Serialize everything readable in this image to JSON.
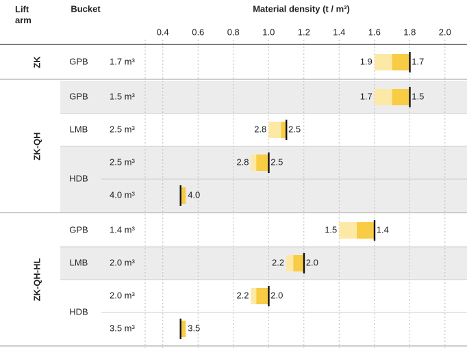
{
  "chart_data": {
    "type": "range-bar",
    "header": {
      "lift_arm": "Lift arm",
      "bucket": "Bucket"
    },
    "title": "Material density (t / m³)",
    "xlim": [
      0.3,
      2.125
    ],
    "xticks": [
      0.4,
      0.6,
      0.8,
      {
        "value": 1,
        "label": "1.0"
      },
      1.2,
      1.4,
      1.6,
      1.8,
      {
        "value": 2,
        "label": "2.0"
      }
    ],
    "light_color": "#fde9a6",
    "dark_color": "#f8cc45",
    "marker_color": "#111111",
    "shade_color": "#ececec",
    "groups": [
      {
        "name": "ZK",
        "buckets": [
          {
            "type": "GPB",
            "rows": [
              {
                "volume": "1.7 m³",
                "light": [
                  1.6,
                  1.7
                ],
                "dark": [
                  1.7,
                  1.8
                ],
                "marker": 1.8,
                "left_label": "1.9",
                "right_label": "1.7",
                "shaded": false
              }
            ]
          }
        ]
      },
      {
        "name": "ZK-QH",
        "buckets": [
          {
            "type": "GPB",
            "rows": [
              {
                "volume": "1.5 m³",
                "light": [
                  1.6,
                  1.7
                ],
                "dark": [
                  1.7,
                  1.8
                ],
                "marker": 1.8,
                "left_label": "1.7",
                "right_label": "1.5",
                "shaded": true
              }
            ]
          },
          {
            "type": "LMB",
            "rows": [
              {
                "volume": "2.5 m³",
                "light": [
                  1.0,
                  1.07
                ],
                "dark": [
                  1.07,
                  1.1
                ],
                "marker": 1.1,
                "left_label": "2.8",
                "right_label": "2.5",
                "shaded": false
              }
            ]
          },
          {
            "type": "HDB",
            "rows": [
              {
                "volume": "2.5 m³",
                "light": [
                  0.9,
                  0.93
                ],
                "dark": [
                  0.93,
                  1.0
                ],
                "marker": 1.0,
                "left_label": "2.8",
                "right_label": "2.5",
                "shaded": true
              },
              {
                "volume": "4.0 m³",
                "dark": [
                  0.5,
                  0.53
                ],
                "marker": 0.5,
                "right_label": "4.0",
                "shaded": true
              }
            ]
          }
        ]
      },
      {
        "name": "ZK-QH-HL",
        "buckets": [
          {
            "type": "GPB",
            "rows": [
              {
                "volume": "1.4 m³",
                "light": [
                  1.4,
                  1.5
                ],
                "dark": [
                  1.5,
                  1.6
                ],
                "marker": 1.6,
                "left_label": "1.5",
                "right_label": "1.4",
                "shaded": false
              }
            ]
          },
          {
            "type": "LMB",
            "rows": [
              {
                "volume": "2.0 m³",
                "light": [
                  1.1,
                  1.14
                ],
                "dark": [
                  1.14,
                  1.2
                ],
                "marker": 1.2,
                "left_label": "2.2",
                "right_label": "2.0",
                "shaded": true
              }
            ]
          },
          {
            "type": "HDB",
            "rows": [
              {
                "volume": "2.0 m³",
                "light": [
                  0.9,
                  0.93
                ],
                "dark": [
                  0.93,
                  1.0
                ],
                "marker": 1.0,
                "left_label": "2.2",
                "right_label": "2.0",
                "shaded": false
              },
              {
                "volume": "3.5 m³",
                "dark": [
                  0.5,
                  0.53
                ],
                "marker": 0.5,
                "right_label": "3.5",
                "shaded": false
              }
            ]
          }
        ]
      }
    ]
  }
}
